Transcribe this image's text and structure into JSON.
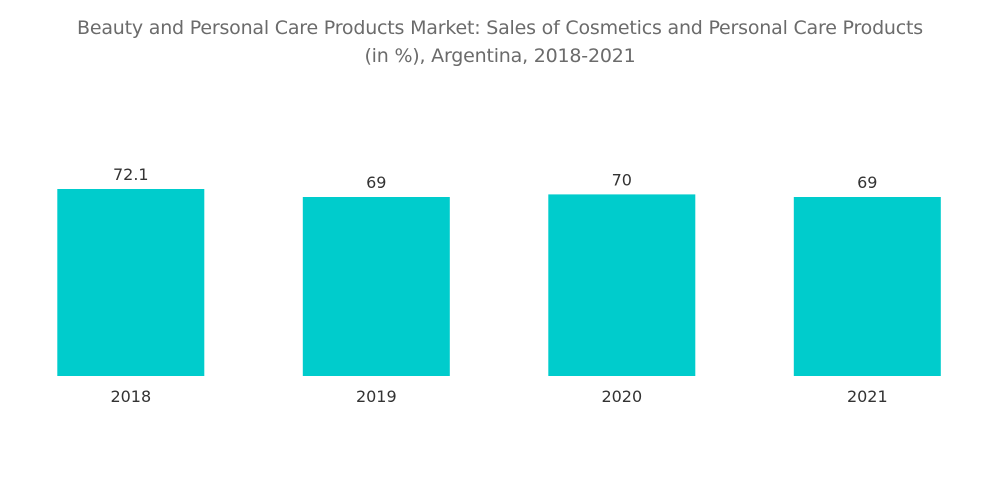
{
  "chart_data": {
    "type": "bar",
    "title_lines": [
      "Beauty and Personal Care Products Market: Sales of Cosmetics and Personal Care Products",
      "(in %), Argentina, 2018-2021"
    ],
    "categories": [
      "2018",
      "2019",
      "2020",
      "2021"
    ],
    "values": [
      72.1,
      69,
      70,
      69
    ],
    "value_labels": [
      "72.1",
      "69",
      "70",
      "69"
    ],
    "xlabel": "",
    "ylabel": "",
    "ylim": [
      0,
      72.1
    ],
    "grid": false,
    "legend": "none",
    "bar_color": "#00cccc"
  }
}
